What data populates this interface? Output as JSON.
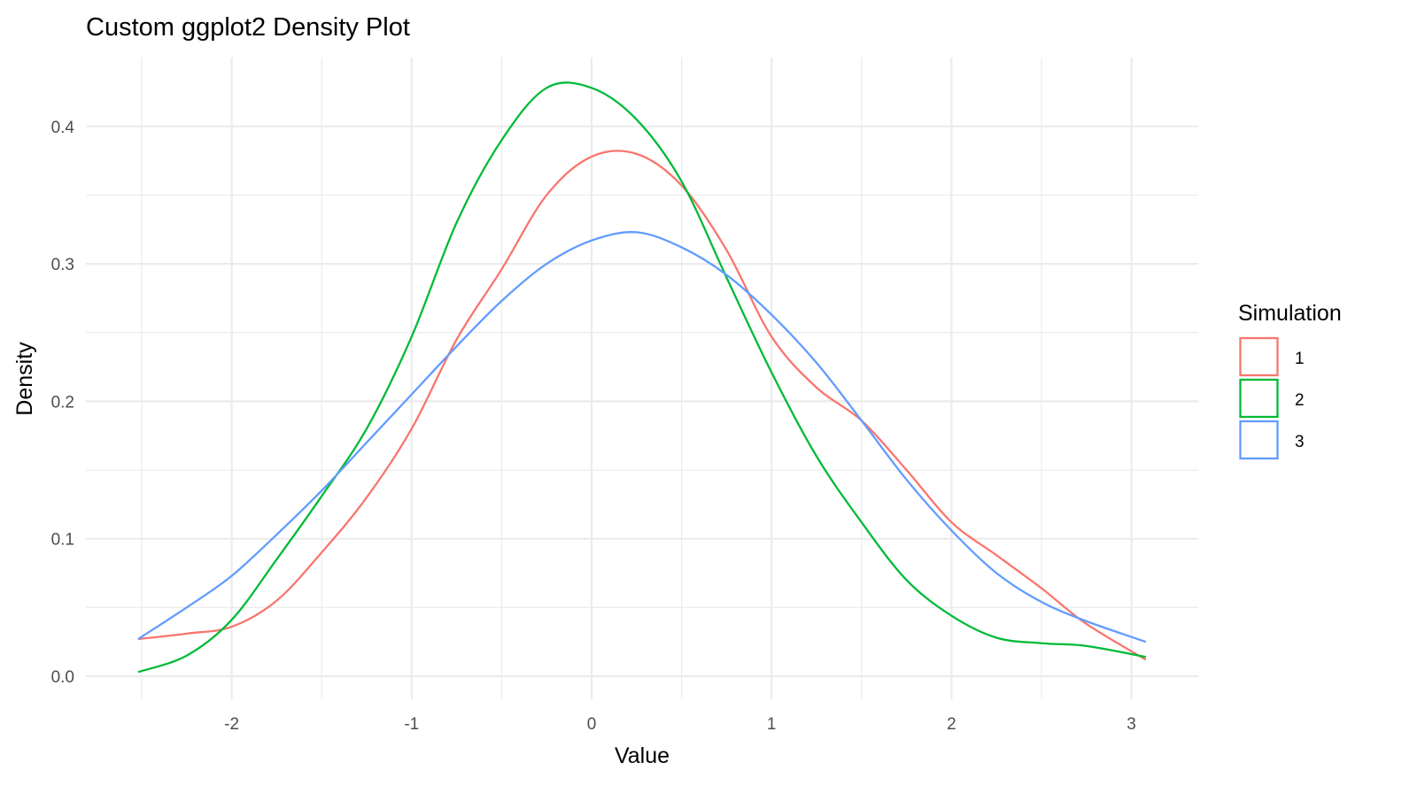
{
  "chart_data": {
    "type": "line",
    "title": "Custom ggplot2 Density Plot",
    "xlabel": "Value",
    "ylabel": "Density",
    "xlim": [
      -2.8,
      3.35
    ],
    "ylim": [
      -0.017,
      0.45
    ],
    "x_ticks": [
      -2,
      -1,
      0,
      1,
      2,
      3
    ],
    "x_tick_labels": [
      "-2",
      "-1",
      "0",
      "1",
      "2",
      "3"
    ],
    "y_ticks": [
      0.0,
      0.1,
      0.2,
      0.3,
      0.4
    ],
    "y_tick_labels": [
      "0.0",
      "0.1",
      "0.2",
      "0.3",
      "0.4"
    ],
    "grid": true,
    "legend": {
      "title": "Simulation",
      "position": "right"
    },
    "x": [
      -2.52,
      -2.25,
      -2,
      -1.75,
      -1.5,
      -1.25,
      -1,
      -0.75,
      -0.5,
      -0.25,
      0,
      0.25,
      0.5,
      0.75,
      1,
      1.25,
      1.5,
      1.75,
      2,
      2.25,
      2.5,
      2.75,
      3.08
    ],
    "series": [
      {
        "name": "1",
        "color": "#F8766D",
        "values": [
          0.027,
          0.031,
          0.036,
          0.055,
          0.09,
          0.13,
          0.18,
          0.245,
          0.296,
          0.35,
          0.378,
          0.38,
          0.357,
          0.31,
          0.247,
          0.21,
          0.186,
          0.15,
          0.112,
          0.088,
          0.064,
          0.038,
          0.012
        ]
      },
      {
        "name": "2",
        "color": "#00BA38",
        "values": [
          0.003,
          0.015,
          0.041,
          0.085,
          0.131,
          0.18,
          0.247,
          0.33,
          0.39,
          0.428,
          0.428,
          0.405,
          0.36,
          0.29,
          0.221,
          0.16,
          0.112,
          0.07,
          0.044,
          0.028,
          0.024,
          0.022,
          0.014
        ]
      },
      {
        "name": "3",
        "color": "#619CFF",
        "values": [
          0.027,
          0.05,
          0.073,
          0.103,
          0.135,
          0.17,
          0.205,
          0.24,
          0.273,
          0.3,
          0.317,
          0.323,
          0.312,
          0.292,
          0.263,
          0.228,
          0.186,
          0.143,
          0.106,
          0.075,
          0.054,
          0.04,
          0.025
        ]
      }
    ]
  }
}
